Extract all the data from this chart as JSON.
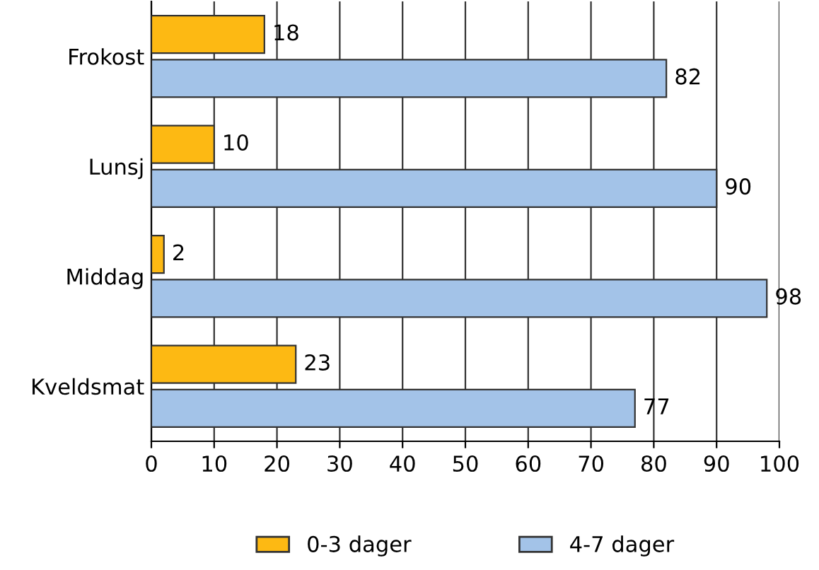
{
  "chart_data": {
    "type": "bar",
    "orientation": "horizontal",
    "categories": [
      "Frokost",
      "Lunsj",
      "Middag",
      "Kveldsmat"
    ],
    "series": [
      {
        "name": "0-3 dager",
        "color": "#fdb913",
        "values": [
          18,
          10,
          2,
          23
        ]
      },
      {
        "name": "4-7 dager",
        "color": "#a3c3e8",
        "values": [
          82,
          90,
          98,
          77
        ]
      }
    ],
    "xlim": [
      0,
      100
    ],
    "xticks": [
      0,
      10,
      20,
      30,
      40,
      50,
      60,
      70,
      80,
      90,
      100
    ],
    "grid": "x",
    "legend": "bottom",
    "data_labels": true
  }
}
